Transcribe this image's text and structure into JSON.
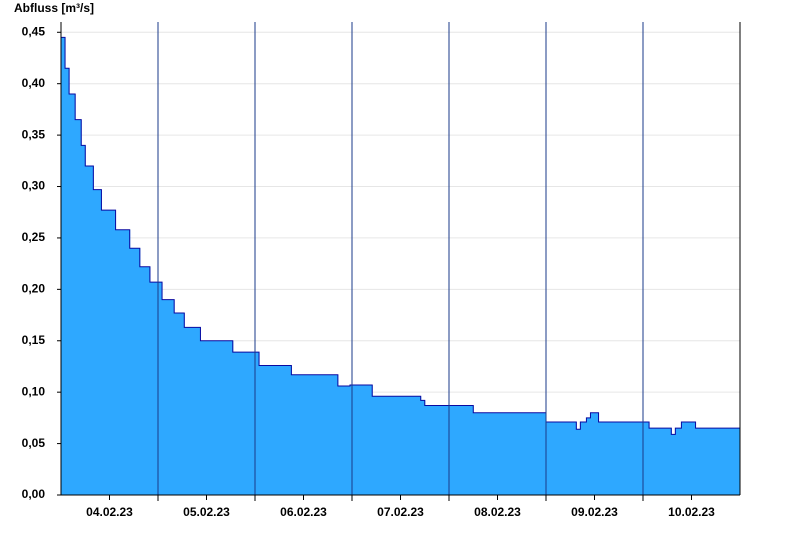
{
  "chart_data": {
    "type": "step-area",
    "title": "Abfluss [m³/s]",
    "color": "#2ea8ff",
    "line_color": "#0a0aa0",
    "grid": true,
    "x": [
      0,
      1,
      2,
      3.5,
      5,
      6,
      8,
      10,
      13.5,
      17,
      19.5,
      22,
      25,
      28,
      30.5,
      34.5,
      42.5,
      49,
      57,
      68.5,
      71.5,
      77,
      89,
      90,
      102,
      120,
      127.5,
      128.5,
      130,
      131,
      133,
      145.5,
      151,
      152,
      153.5,
      157
    ],
    "values": [
      0.445,
      0.415,
      0.39,
      0.365,
      0.34,
      0.32,
      0.297,
      0.277,
      0.258,
      0.24,
      0.222,
      0.207,
      0.19,
      0.177,
      0.163,
      0.15,
      0.139,
      0.126,
      0.117,
      0.106,
      0.107,
      0.096,
      0.092,
      0.087,
      0.08,
      0.071,
      0.064,
      0.071,
      0.075,
      0.08,
      0.071,
      0.065,
      0.059,
      0.065,
      0.071,
      0.065
    ],
    "xlim": [
      0,
      168
    ],
    "xticks": [
      {
        "value": 12,
        "label": "04.02.23"
      },
      {
        "value": 36,
        "label": "05.02.23"
      },
      {
        "value": 60,
        "label": "06.02.23"
      },
      {
        "value": 84,
        "label": "07.02.23"
      },
      {
        "value": 108,
        "label": "08.02.23"
      },
      {
        "value": 132,
        "label": "09.02.23"
      },
      {
        "value": 156,
        "label": "10.02.23"
      }
    ],
    "ylim": [
      0,
      0.46
    ],
    "yticks": [
      {
        "value": 0,
        "label": "0,00"
      },
      {
        "value": 0.05,
        "label": "0,05"
      },
      {
        "value": 0.1,
        "label": "0,10"
      },
      {
        "value": 0.15,
        "label": "0,15"
      },
      {
        "value": 0.2,
        "label": "0,20"
      },
      {
        "value": 0.25,
        "label": "0,25"
      },
      {
        "value": 0.3,
        "label": "0,30"
      },
      {
        "value": 0.35,
        "label": "0,35"
      },
      {
        "value": 0.4,
        "label": "0,40"
      },
      {
        "value": 0.45,
        "label": "0,45"
      }
    ]
  }
}
